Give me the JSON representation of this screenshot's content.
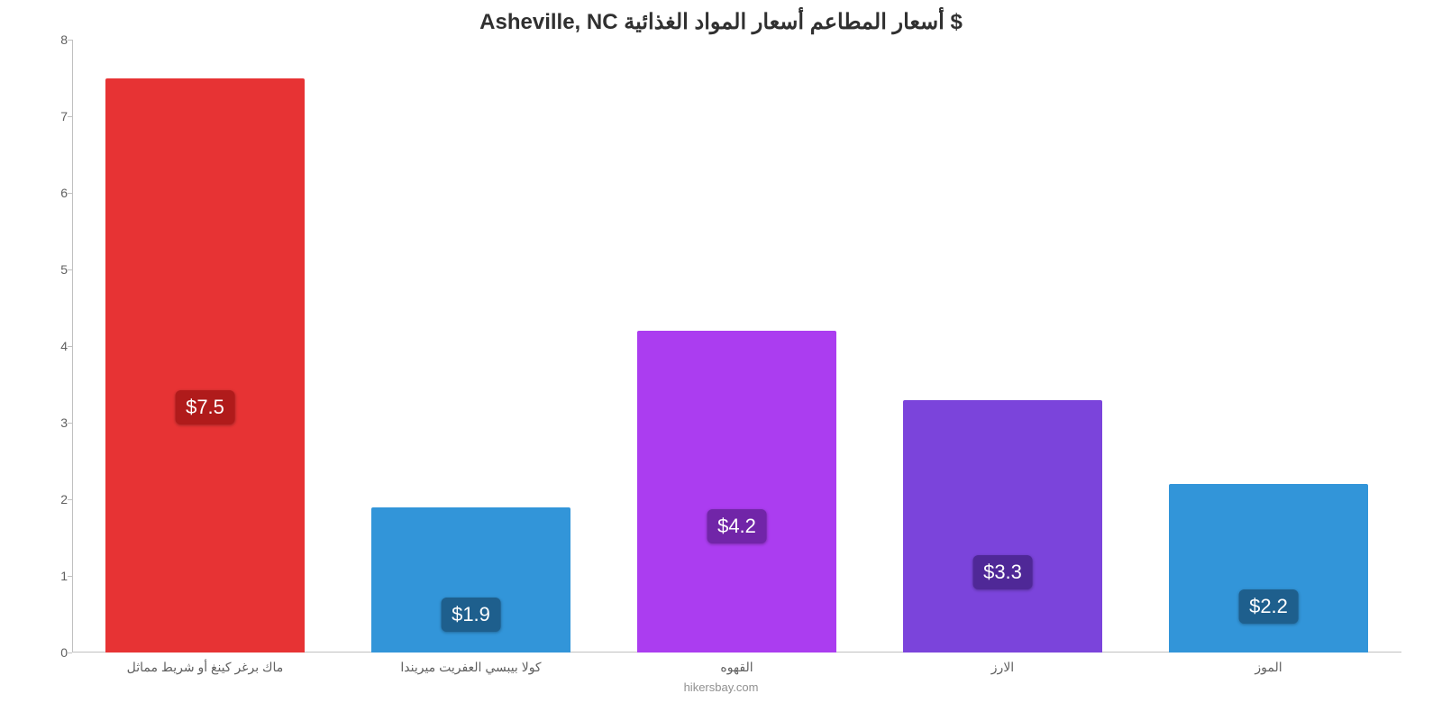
{
  "chart": {
    "type": "bar",
    "title": "Asheville, NC أسعار المطاعم أسعار المواد الغذائية $",
    "title_fontsize": 24,
    "title_color": "#303030",
    "source": "hikersbay.com",
    "background_color": "#ffffff",
    "axis_color": "#c0c0c0",
    "tick_label_color": "#606060",
    "tick_fontsize": 14,
    "ylim": [
      0,
      8
    ],
    "ytick_step": 1,
    "yticks": [
      0,
      1,
      2,
      3,
      4,
      5,
      6,
      7,
      8
    ],
    "bar_width_ratio": 0.75,
    "value_label_fontsize": 22,
    "value_label_text_color": "#ffffff",
    "categories": [
      "ماك برغر كينغ أو شريط مماثل",
      "كولا بيبسي العفريت ميريندا",
      "القهوه",
      "الارز",
      "الموز"
    ],
    "values": [
      7.5,
      1.9,
      4.2,
      3.3,
      2.2
    ],
    "value_labels": [
      "$7.5",
      "$1.9",
      "$4.2",
      "$3.3",
      "$2.2"
    ],
    "bar_colors": [
      "#e73334",
      "#3295d9",
      "#ab3df0",
      "#7b44db",
      "#3295d9"
    ],
    "value_label_bg_colors": [
      "#b01b1b",
      "#1e5f8d",
      "#7125a8",
      "#4f2897",
      "#1e5f8d"
    ],
    "value_label_y_offsets": [
      3.2,
      0.5,
      1.65,
      1.05,
      0.6
    ]
  }
}
